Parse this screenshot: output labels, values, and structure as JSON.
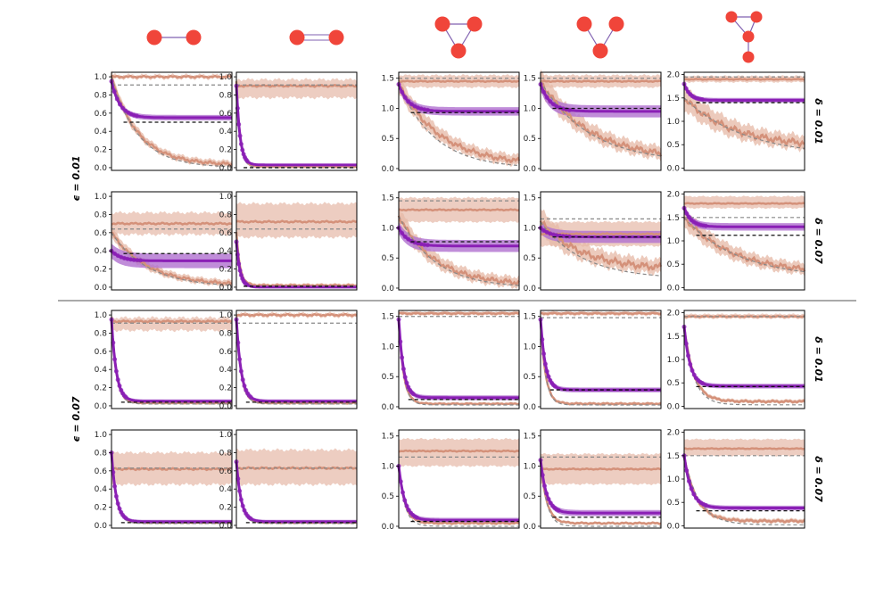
{
  "figure": {
    "row_group_labels": [
      "ϵ = 0.01",
      "ϵ = 0.07"
    ],
    "row_labels": [
      "δ = 0.01",
      "δ = 0.07",
      "δ = 0.01",
      "δ = 0.07"
    ],
    "colors": {
      "orange": "#d4917a",
      "orange_band": "#e6b8a6",
      "purple": "#8a1fb5",
      "purple_band": "#b070d0",
      "grey_dashed": "#888888",
      "black_dashed": "#111111",
      "node": "#f0453a",
      "edge": "#8060b0"
    },
    "column_graphs": [
      "two-node-edge",
      "two-node-bidirectional",
      "triangle",
      "v-shape",
      "triangle-with-tail"
    ]
  },
  "chart_data": {
    "type": "line",
    "x_range": [
      0,
      100
    ],
    "grid": false,
    "panels": [
      {
        "row": 0,
        "col": 0,
        "ylim": [
          -0.03,
          1.05
        ],
        "yticks": [
          "0.0",
          "0.2",
          "0.4",
          "0.6",
          "0.8",
          "1.0"
        ],
        "tickvals": [
          0,
          0.2,
          0.4,
          0.6,
          0.8,
          1.0
        ],
        "flat": [
          1.0,
          0.98,
          1.02
        ],
        "grey_flat": 0.91,
        "decay": [
          1.0,
          0.03,
          22,
          0.06
        ],
        "grey_decay": [
          1.0,
          0.0,
          22
        ],
        "purple": [
          0.95,
          0.55,
          7,
          0.03
        ],
        "black": 0.5
      },
      {
        "row": 0,
        "col": 1,
        "ylim": [
          -0.03,
          1.05
        ],
        "yticks": [
          "0.0",
          "0.2",
          "0.4",
          "0.6",
          "0.8",
          "1.0"
        ],
        "tickvals": [
          0,
          0.2,
          0.4,
          0.6,
          0.8,
          1.0
        ],
        "flat": [
          0.9,
          0.77,
          0.97
        ],
        "grey_flat": 0.91,
        "decay": [
          0.95,
          0.01,
          3,
          0.02
        ],
        "grey_decay": [
          0.95,
          0.0,
          3
        ],
        "purple": [
          0.9,
          0.03,
          3,
          0.01
        ],
        "black": 0.0
      },
      {
        "row": 0,
        "col": 2,
        "ylim": [
          -0.03,
          1.6
        ],
        "yticks": [
          "0.0",
          "0.5",
          "1.0",
          "1.5"
        ],
        "tickvals": [
          0,
          0.5,
          1.0,
          1.5
        ],
        "flat": [
          1.45,
          1.35,
          1.55
        ],
        "grey_flat": 1.5,
        "decay": [
          1.4,
          0.05,
          35,
          0.15
        ],
        "grey_decay": [
          1.4,
          0.0,
          30
        ],
        "purple": [
          1.4,
          0.95,
          8,
          0.07
        ],
        "black": 0.93
      },
      {
        "row": 0,
        "col": 3,
        "ylim": [
          -0.03,
          1.6
        ],
        "yticks": [
          "0.0",
          "0.5",
          "1.0",
          "1.5"
        ],
        "tickvals": [
          0,
          0.5,
          1.0,
          1.5
        ],
        "flat": [
          1.45,
          1.35,
          1.55
        ],
        "grey_flat": 1.5,
        "decay": [
          1.45,
          0.15,
          40,
          0.18
        ],
        "grey_decay": [
          1.45,
          0.1,
          40
        ],
        "purple": [
          1.4,
          0.95,
          8,
          0.1
        ],
        "black": 1.0
      },
      {
        "row": 0,
        "col": 4,
        "ylim": [
          -0.05,
          2.05
        ],
        "yticks": [
          "0.0",
          "0.5",
          "1.0",
          "1.5",
          "2.0"
        ],
        "tickvals": [
          0,
          0.5,
          1.0,
          1.5,
          2.0
        ],
        "flat": [
          1.9,
          1.84,
          1.97
        ],
        "grey_flat": 1.95,
        "decay": [
          1.5,
          0.45,
          40,
          0.25
        ],
        "grey_decay": [
          1.5,
          0.25,
          50
        ],
        "purple": [
          1.8,
          1.45,
          5,
          0.05
        ],
        "black": 1.4
      },
      {
        "row": 1,
        "col": 0,
        "ylim": [
          -0.03,
          1.05
        ],
        "yticks": [
          "0.0",
          "0.2",
          "0.4",
          "0.6",
          "0.8",
          "1.0"
        ],
        "tickvals": [
          0,
          0.2,
          0.4,
          0.6,
          0.8,
          1.0
        ],
        "flat": [
          0.7,
          0.58,
          0.82
        ],
        "grey_flat": 0.64,
        "decay": [
          0.6,
          0.02,
          30,
          0.06
        ],
        "grey_decay": [
          0.6,
          0.0,
          30
        ],
        "purple": [
          0.4,
          0.29,
          8,
          0.08
        ],
        "black": 0.37
      },
      {
        "row": 1,
        "col": 1,
        "ylim": [
          -0.03,
          1.05
        ],
        "yticks": [
          "0.0",
          "0.2",
          "0.4",
          "0.6",
          "0.8",
          "1.0"
        ],
        "tickvals": [
          0,
          0.2,
          0.4,
          0.6,
          0.8,
          1.0
        ],
        "flat": [
          0.72,
          0.55,
          0.92
        ],
        "grey_flat": 0.64,
        "decay": [
          0.6,
          0.02,
          3,
          0.03
        ],
        "grey_decay": [
          0.6,
          0.0,
          3
        ],
        "purple": [
          0.5,
          0.0,
          3,
          0.01
        ],
        "black": 0.01
      },
      {
        "row": 1,
        "col": 2,
        "ylim": [
          -0.03,
          1.6
        ],
        "yticks": [
          "0.0",
          "0.5",
          "1.0",
          "1.5"
        ],
        "tickvals": [
          0,
          0.5,
          1.0,
          1.5
        ],
        "flat": [
          1.3,
          1.1,
          1.5
        ],
        "grey_flat": 1.45,
        "decay": [
          1.2,
          0.05,
          30,
          0.15
        ],
        "grey_decay": [
          1.2,
          0.0,
          30
        ],
        "purple": [
          1.0,
          0.7,
          8,
          0.1
        ],
        "black": 0.77
      },
      {
        "row": 1,
        "col": 3,
        "ylim": [
          -0.03,
          1.6
        ],
        "yticks": [
          "0.0",
          "0.5",
          "1.0",
          "1.5"
        ],
        "tickvals": [
          0,
          0.5,
          1.0,
          1.5
        ],
        "flat": [
          0.9,
          0.7,
          1.1
        ],
        "grey_flat": 1.15,
        "decay": [
          1.1,
          0.3,
          35,
          0.2
        ],
        "grey_decay": [
          1.1,
          0.15,
          35
        ],
        "purple": [
          1.0,
          0.85,
          8,
          0.1
        ],
        "black": 0.85
      },
      {
        "row": 1,
        "col": 4,
        "ylim": [
          -0.05,
          2.05
        ],
        "yticks": [
          "0.0",
          "0.5",
          "1.0",
          "1.5",
          "2.0"
        ],
        "tickvals": [
          0,
          0.5,
          1.0,
          1.5,
          2.0
        ],
        "flat": [
          1.8,
          1.7,
          1.95
        ],
        "grey_flat": 1.5,
        "decay": [
          1.5,
          0.3,
          40,
          0.2
        ],
        "grey_decay": [
          1.5,
          0.2,
          45
        ],
        "purple": [
          1.7,
          1.3,
          6,
          0.08
        ],
        "black": 1.12
      },
      {
        "row": 2,
        "col": 0,
        "ylim": [
          -0.03,
          1.05
        ],
        "yticks": [
          "0.0",
          "0.2",
          "0.4",
          "0.6",
          "0.8",
          "1.0"
        ],
        "tickvals": [
          0,
          0.2,
          0.4,
          0.6,
          0.8,
          1.0
        ],
        "flat": [
          0.93,
          0.83,
          0.97
        ],
        "grey_flat": 0.91,
        "decay": [
          0.95,
          0.03,
          4,
          0.02
        ],
        "grey_decay": [
          0.95,
          0.02,
          4
        ],
        "purple": [
          0.95,
          0.05,
          4,
          0.02
        ],
        "black": 0.04
      },
      {
        "row": 2,
        "col": 1,
        "ylim": [
          -0.03,
          1.05
        ],
        "yticks": [
          "0.0",
          "0.2",
          "0.4",
          "0.6",
          "0.8",
          "1.0"
        ],
        "tickvals": [
          0,
          0.2,
          0.4,
          0.6,
          0.8,
          1.0
        ],
        "flat": [
          1.0,
          0.98,
          1.02
        ],
        "grey_flat": 0.91,
        "decay": [
          0.95,
          0.03,
          4,
          0.02
        ],
        "grey_decay": [
          0.95,
          0.02,
          4
        ],
        "purple": [
          0.95,
          0.05,
          4,
          0.02
        ],
        "black": 0.04
      },
      {
        "row": 2,
        "col": 2,
        "ylim": [
          -0.03,
          1.6
        ],
        "yticks": [
          "0.0",
          "0.5",
          "1.0",
          "1.5"
        ],
        "tickvals": [
          0,
          0.5,
          1.0,
          1.5
        ],
        "flat": [
          1.55,
          1.52,
          1.58
        ],
        "grey_flat": 1.5,
        "decay": [
          1.45,
          0.05,
          4,
          0.03
        ],
        "grey_decay": [
          1.45,
          0.03,
          4
        ],
        "purple": [
          1.45,
          0.15,
          4,
          0.04
        ],
        "black": 0.12
      },
      {
        "row": 2,
        "col": 3,
        "ylim": [
          -0.03,
          1.6
        ],
        "yticks": [
          "0.0",
          "0.5",
          "1.0",
          "1.5"
        ],
        "tickvals": [
          0,
          0.5,
          1.0,
          1.5
        ],
        "flat": [
          1.55,
          1.52,
          1.58
        ],
        "grey_flat": 1.48,
        "decay": [
          1.45,
          0.05,
          4,
          0.04
        ],
        "grey_decay": [
          1.45,
          0.03,
          4
        ],
        "purple": [
          1.45,
          0.28,
          4,
          0.04
        ],
        "black": 0.28
      },
      {
        "row": 2,
        "col": 4,
        "ylim": [
          -0.05,
          2.05
        ],
        "yticks": [
          "0.0",
          "0.5",
          "1.0",
          "1.5",
          "2.0"
        ],
        "tickvals": [
          0,
          0.5,
          1.0,
          1.5,
          2.0
        ],
        "flat": [
          1.92,
          1.88,
          1.97
        ],
        "grey_flat": 1.92,
        "decay": [
          1.7,
          0.1,
          8,
          0.07
        ],
        "grey_decay": [
          1.7,
          0.03,
          8
        ],
        "purple": [
          1.7,
          0.43,
          5,
          0.05
        ],
        "black": 0.42
      },
      {
        "row": 3,
        "col": 0,
        "ylim": [
          -0.03,
          1.05
        ],
        "yticks": [
          "0.0",
          "0.2",
          "0.4",
          "0.6",
          "0.8",
          "1.0"
        ],
        "tickvals": [
          0,
          0.2,
          0.4,
          0.6,
          0.8,
          1.0
        ],
        "flat": [
          0.62,
          0.45,
          0.8
        ],
        "grey_flat": 0.63,
        "decay": [
          0.8,
          0.03,
          4,
          0.02
        ],
        "grey_decay": [
          0.8,
          0.02,
          4
        ],
        "purple": [
          0.8,
          0.04,
          4,
          0.02
        ],
        "black": 0.03
      },
      {
        "row": 3,
        "col": 1,
        "ylim": [
          -0.03,
          1.05
        ],
        "yticks": [
          "0.0",
          "0.2",
          "0.4",
          "0.6",
          "0.8",
          "1.0"
        ],
        "tickvals": [
          0,
          0.2,
          0.4,
          0.6,
          0.8,
          1.0
        ],
        "flat": [
          0.63,
          0.45,
          0.83
        ],
        "grey_flat": 0.63,
        "decay": [
          0.7,
          0.03,
          4,
          0.02
        ],
        "grey_decay": [
          0.7,
          0.02,
          4
        ],
        "purple": [
          0.7,
          0.04,
          4,
          0.02
        ],
        "black": 0.03
      },
      {
        "row": 3,
        "col": 2,
        "ylim": [
          -0.03,
          1.6
        ],
        "yticks": [
          "0.0",
          "0.5",
          "1.0",
          "1.5"
        ],
        "tickvals": [
          0,
          0.5,
          1.0,
          1.5
        ],
        "flat": [
          1.25,
          1.0,
          1.45
        ],
        "grey_flat": 1.15,
        "decay": [
          1.0,
          0.05,
          5,
          0.04
        ],
        "grey_decay": [
          1.0,
          0.0,
          5
        ],
        "purple": [
          1.0,
          0.1,
          5,
          0.04
        ],
        "black": 0.08
      },
      {
        "row": 3,
        "col": 3,
        "ylim": [
          -0.03,
          1.6
        ],
        "yticks": [
          "0.0",
          "0.5",
          "1.0",
          "1.5"
        ],
        "tickvals": [
          0,
          0.5,
          1.0,
          1.5
        ],
        "flat": [
          0.95,
          0.7,
          1.2
        ],
        "grey_flat": 1.15,
        "decay": [
          1.1,
          0.05,
          5,
          0.04
        ],
        "grey_decay": [
          1.1,
          0.0,
          5
        ],
        "purple": [
          1.1,
          0.22,
          5,
          0.05
        ],
        "black": 0.15
      },
      {
        "row": 3,
        "col": 4,
        "ylim": [
          -0.05,
          2.05
        ],
        "yticks": [
          "0.0",
          "0.5",
          "1.0",
          "1.5",
          "2.0"
        ],
        "tickvals": [
          0,
          0.5,
          1.0,
          1.5,
          2.0
        ],
        "flat": [
          1.65,
          1.5,
          1.85
        ],
        "grey_flat": 1.5,
        "decay": [
          1.5,
          0.1,
          10,
          0.08
        ],
        "grey_decay": [
          1.5,
          0.02,
          12
        ],
        "purple": [
          1.5,
          0.38,
          6,
          0.05
        ],
        "black": 0.32
      }
    ]
  }
}
